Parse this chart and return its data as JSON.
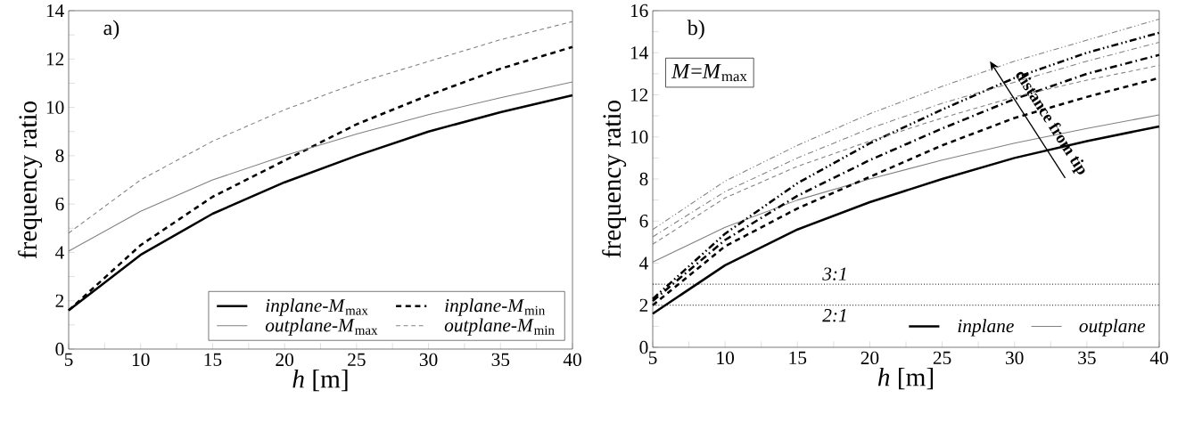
{
  "chart_data": [
    {
      "type": "line",
      "xlabel": "*h* [m]",
      "ylabel": "frequency ratio",
      "annotations": [
        "a)"
      ],
      "x": [
        5,
        10,
        15,
        20,
        25,
        30,
        35,
        40
      ],
      "xlim": [
        5,
        40
      ],
      "xticks": [
        5,
        10,
        15,
        20,
        25,
        30,
        35,
        40
      ],
      "ylim": [
        0,
        14
      ],
      "yticks": [
        0,
        2,
        4,
        6,
        8,
        10,
        12,
        14
      ],
      "legend": "bottom right",
      "series": [
        {
          "name": "*inplane-M*$_{max}$",
          "color": "#000000",
          "line_style": "solid",
          "values": [
            1.6,
            3.9,
            5.6,
            6.9,
            8.0,
            9.0,
            9.8,
            10.5
          ]
        },
        {
          "name": "*inplane-M*$_{min}$",
          "color": "#000000",
          "line_style": "dashed",
          "values": [
            1.6,
            4.3,
            6.3,
            7.8,
            9.3,
            10.5,
            11.6,
            12.5
          ]
        },
        {
          "name": "*outplane-M*$_{max}$",
          "color": "#808080",
          "line_style": "solid",
          "values": [
            4.05,
            5.7,
            7.0,
            8.0,
            8.9,
            9.7,
            10.4,
            11.05
          ]
        },
        {
          "name": "*outplane-M*$_{min}$",
          "color": "#808080",
          "line_style": "dashed",
          "values": [
            4.8,
            7.0,
            8.6,
            9.9,
            11.0,
            11.9,
            12.8,
            13.55
          ]
        }
      ]
    },
    {
      "type": "line",
      "xlabel": "*h* [m]",
      "ylabel": "frequency ratio",
      "annotations": [
        "b)",
        "*M*=*M*$_{max}$",
        "distance from tip"
      ],
      "x": [
        5,
        10,
        15,
        20,
        25,
        30,
        35,
        40
      ],
      "xlim": [
        5,
        40
      ],
      "xticks": [
        5,
        10,
        15,
        20,
        25,
        30,
        35,
        40
      ],
      "ylim": [
        0,
        16
      ],
      "yticks": [
        0,
        2,
        4,
        6,
        8,
        10,
        12,
        14,
        16
      ],
      "legend": "bottom right",
      "ref_lines": [
        {
          "axis": "y",
          "value": 3,
          "label": "3:1",
          "line_style": "dotted",
          "color": "#000000"
        },
        {
          "axis": "y",
          "value": 2,
          "label": "2:1",
          "line_style": "dotted",
          "color": "#000000"
        }
      ],
      "series": [
        {
          "name": "inplane",
          "color": "#000000",
          "line_style": "solid",
          "values": [
            1.6,
            3.9,
            5.6,
            6.9,
            8.0,
            9.0,
            9.8,
            10.5
          ]
        },
        {
          "name": "outplane",
          "color": "#808080",
          "line_style": "solid",
          "values": [
            4.05,
            5.7,
            7.0,
            8.0,
            8.9,
            9.7,
            10.4,
            11.05
          ]
        },
        {
          "color": "#000000",
          "line_style": "dashed",
          "values": [
            2.0,
            4.8,
            6.6,
            8.1,
            9.6,
            10.9,
            11.9,
            12.8
          ]
        },
        {
          "color": "#000000",
          "line_style": "dashdot",
          "values": [
            2.2,
            5.1,
            7.2,
            8.9,
            10.4,
            11.8,
            13.0,
            13.9
          ]
        },
        {
          "color": "#000000",
          "line_style": "dashdotdot",
          "values": [
            2.3,
            5.4,
            7.8,
            9.7,
            11.3,
            12.8,
            14.0,
            14.95
          ]
        },
        {
          "color": "#808080",
          "line_style": "dashed",
          "values": [
            4.9,
            7.1,
            8.6,
            9.8,
            10.9,
            11.9,
            12.7,
            13.4
          ]
        },
        {
          "color": "#808080",
          "line_style": "dashdot",
          "values": [
            5.25,
            7.4,
            9.0,
            10.4,
            11.6,
            12.6,
            13.6,
            14.5
          ]
        },
        {
          "color": "#808080",
          "line_style": "dashdotdot",
          "values": [
            5.6,
            7.9,
            9.6,
            11.1,
            12.4,
            13.6,
            14.6,
            15.6
          ]
        }
      ]
    }
  ]
}
